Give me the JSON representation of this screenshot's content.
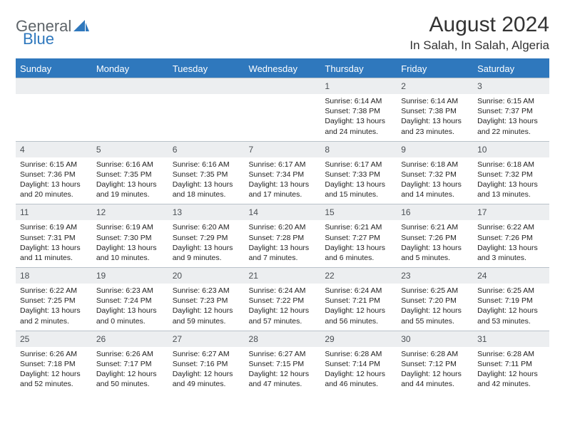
{
  "brand": {
    "part1": "General",
    "part2": "Blue"
  },
  "title": {
    "month": "August 2024",
    "location": "In Salah, In Salah, Algeria"
  },
  "style": {
    "accent": "#2f78bd",
    "daynum_bg": "#eceef0",
    "row_border": "#b9c2c9",
    "text": "#222222",
    "header_text": "#ffffff"
  },
  "weekdays": [
    "Sunday",
    "Monday",
    "Tuesday",
    "Wednesday",
    "Thursday",
    "Friday",
    "Saturday"
  ],
  "weeks": [
    {
      "nums": [
        "",
        "",
        "",
        "",
        "1",
        "2",
        "3"
      ],
      "cells": [
        null,
        null,
        null,
        null,
        {
          "sunrise": "6:14 AM",
          "sunset": "7:38 PM",
          "daylight": "13 hours and 24 minutes."
        },
        {
          "sunrise": "6:14 AM",
          "sunset": "7:38 PM",
          "daylight": "13 hours and 23 minutes."
        },
        {
          "sunrise": "6:15 AM",
          "sunset": "7:37 PM",
          "daylight": "13 hours and 22 minutes."
        }
      ]
    },
    {
      "nums": [
        "4",
        "5",
        "6",
        "7",
        "8",
        "9",
        "10"
      ],
      "cells": [
        {
          "sunrise": "6:15 AM",
          "sunset": "7:36 PM",
          "daylight": "13 hours and 20 minutes."
        },
        {
          "sunrise": "6:16 AM",
          "sunset": "7:35 PM",
          "daylight": "13 hours and 19 minutes."
        },
        {
          "sunrise": "6:16 AM",
          "sunset": "7:35 PM",
          "daylight": "13 hours and 18 minutes."
        },
        {
          "sunrise": "6:17 AM",
          "sunset": "7:34 PM",
          "daylight": "13 hours and 17 minutes."
        },
        {
          "sunrise": "6:17 AM",
          "sunset": "7:33 PM",
          "daylight": "13 hours and 15 minutes."
        },
        {
          "sunrise": "6:18 AM",
          "sunset": "7:32 PM",
          "daylight": "13 hours and 14 minutes."
        },
        {
          "sunrise": "6:18 AM",
          "sunset": "7:32 PM",
          "daylight": "13 hours and 13 minutes."
        }
      ]
    },
    {
      "nums": [
        "11",
        "12",
        "13",
        "14",
        "15",
        "16",
        "17"
      ],
      "cells": [
        {
          "sunrise": "6:19 AM",
          "sunset": "7:31 PM",
          "daylight": "13 hours and 11 minutes."
        },
        {
          "sunrise": "6:19 AM",
          "sunset": "7:30 PM",
          "daylight": "13 hours and 10 minutes."
        },
        {
          "sunrise": "6:20 AM",
          "sunset": "7:29 PM",
          "daylight": "13 hours and 9 minutes."
        },
        {
          "sunrise": "6:20 AM",
          "sunset": "7:28 PM",
          "daylight": "13 hours and 7 minutes."
        },
        {
          "sunrise": "6:21 AM",
          "sunset": "7:27 PM",
          "daylight": "13 hours and 6 minutes."
        },
        {
          "sunrise": "6:21 AM",
          "sunset": "7:26 PM",
          "daylight": "13 hours and 5 minutes."
        },
        {
          "sunrise": "6:22 AM",
          "sunset": "7:26 PM",
          "daylight": "13 hours and 3 minutes."
        }
      ]
    },
    {
      "nums": [
        "18",
        "19",
        "20",
        "21",
        "22",
        "23",
        "24"
      ],
      "cells": [
        {
          "sunrise": "6:22 AM",
          "sunset": "7:25 PM",
          "daylight": "13 hours and 2 minutes."
        },
        {
          "sunrise": "6:23 AM",
          "sunset": "7:24 PM",
          "daylight": "13 hours and 0 minutes."
        },
        {
          "sunrise": "6:23 AM",
          "sunset": "7:23 PM",
          "daylight": "12 hours and 59 minutes."
        },
        {
          "sunrise": "6:24 AM",
          "sunset": "7:22 PM",
          "daylight": "12 hours and 57 minutes."
        },
        {
          "sunrise": "6:24 AM",
          "sunset": "7:21 PM",
          "daylight": "12 hours and 56 minutes."
        },
        {
          "sunrise": "6:25 AM",
          "sunset": "7:20 PM",
          "daylight": "12 hours and 55 minutes."
        },
        {
          "sunrise": "6:25 AM",
          "sunset": "7:19 PM",
          "daylight": "12 hours and 53 minutes."
        }
      ]
    },
    {
      "nums": [
        "25",
        "26",
        "27",
        "28",
        "29",
        "30",
        "31"
      ],
      "cells": [
        {
          "sunrise": "6:26 AM",
          "sunset": "7:18 PM",
          "daylight": "12 hours and 52 minutes."
        },
        {
          "sunrise": "6:26 AM",
          "sunset": "7:17 PM",
          "daylight": "12 hours and 50 minutes."
        },
        {
          "sunrise": "6:27 AM",
          "sunset": "7:16 PM",
          "daylight": "12 hours and 49 minutes."
        },
        {
          "sunrise": "6:27 AM",
          "sunset": "7:15 PM",
          "daylight": "12 hours and 47 minutes."
        },
        {
          "sunrise": "6:28 AM",
          "sunset": "7:14 PM",
          "daylight": "12 hours and 46 minutes."
        },
        {
          "sunrise": "6:28 AM",
          "sunset": "7:12 PM",
          "daylight": "12 hours and 44 minutes."
        },
        {
          "sunrise": "6:28 AM",
          "sunset": "7:11 PM",
          "daylight": "12 hours and 42 minutes."
        }
      ]
    }
  ],
  "labels": {
    "sunrise": "Sunrise: ",
    "sunset": "Sunset: ",
    "daylight": "Daylight: "
  }
}
